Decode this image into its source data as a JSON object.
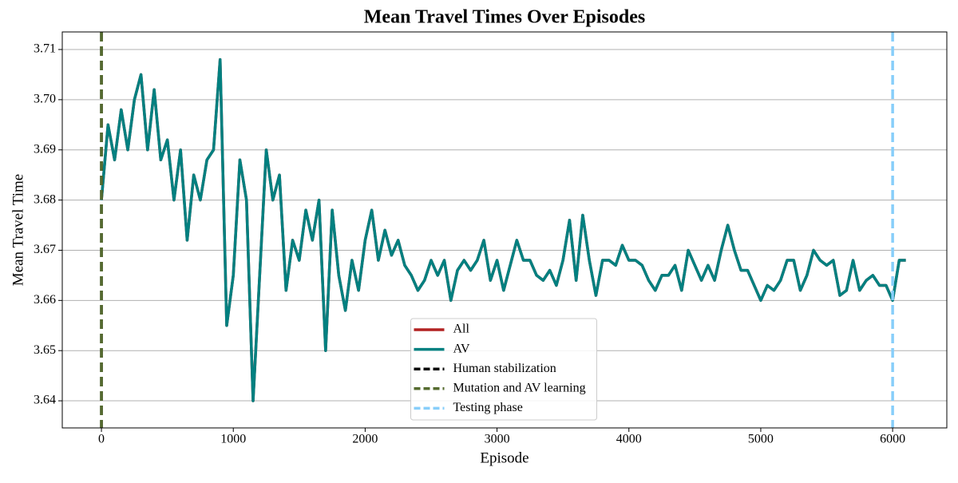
{
  "chart_data": {
    "type": "line",
    "title": "Mean Travel Times Over Episodes",
    "xlabel": "Episode",
    "ylabel": "Mean Travel Time",
    "xlim": [
      -297,
      6411
    ],
    "ylim": [
      3.6346,
      3.7135
    ],
    "xticks": [
      0,
      1000,
      2000,
      3000,
      4000,
      5000,
      6000
    ],
    "yticks": [
      3.64,
      3.65,
      3.66,
      3.67,
      3.68,
      3.69,
      {
        "value": 3.7,
        "label": "3.70"
      },
      3.71
    ],
    "grid": "y",
    "legend": "lower center",
    "x": [
      0,
      50,
      100,
      150,
      200,
      250,
      300,
      350,
      400,
      450,
      500,
      550,
      600,
      650,
      700,
      750,
      800,
      850,
      900,
      950,
      1000,
      1050,
      1100,
      1150,
      1200,
      1250,
      1300,
      1350,
      1400,
      1450,
      1500,
      1550,
      1600,
      1650,
      1700,
      1750,
      1800,
      1850,
      1900,
      1950,
      2000,
      2050,
      2100,
      2150,
      2200,
      2250,
      2300,
      2350,
      2400,
      2450,
      2500,
      2550,
      2600,
      2650,
      2700,
      2750,
      2800,
      2850,
      2900,
      2950,
      3000,
      3050,
      3100,
      3150,
      3200,
      3250,
      3300,
      3350,
      3400,
      3450,
      3500,
      3550,
      3600,
      3650,
      3700,
      3750,
      3800,
      3850,
      3900,
      3950,
      4000,
      4050,
      4100,
      4150,
      4200,
      4250,
      4300,
      4350,
      4400,
      4450,
      4500,
      4550,
      4600,
      4650,
      4700,
      4750,
      4800,
      4850,
      4900,
      4950,
      5000,
      5050,
      5100,
      5150,
      5200,
      5250,
      5300,
      5350,
      5400,
      5450,
      5500,
      5550,
      5600,
      5650,
      5700,
      5750,
      5800,
      5850,
      5900,
      5950,
      6000,
      6050,
      6100
    ],
    "series": [
      {
        "name": "All",
        "color": "#b22222",
        "width": 3.5,
        "values": [
          3.68,
          3.695,
          3.688,
          3.698,
          3.69,
          3.7,
          3.705,
          3.69,
          3.702,
          3.688,
          3.692,
          3.68,
          3.69,
          3.672,
          3.685,
          3.68,
          3.688,
          3.69,
          3.708,
          3.655,
          3.665,
          3.688,
          3.68,
          3.64,
          3.665,
          3.69,
          3.68,
          3.685,
          3.662,
          3.672,
          3.668,
          3.678,
          3.672,
          3.68,
          3.65,
          3.678,
          3.665,
          3.658,
          3.668,
          3.662,
          3.672,
          3.678,
          3.668,
          3.674,
          3.669,
          3.672,
          3.667,
          3.665,
          3.662,
          3.664,
          3.668,
          3.665,
          3.668,
          3.66,
          3.666,
          3.668,
          3.666,
          3.668,
          3.672,
          3.664,
          3.668,
          3.662,
          3.667,
          3.672,
          3.668,
          3.668,
          3.665,
          3.664,
          3.666,
          3.663,
          3.668,
          3.676,
          3.664,
          3.677,
          3.668,
          3.661,
          3.668,
          3.668,
          3.667,
          3.671,
          3.668,
          3.668,
          3.667,
          3.664,
          3.662,
          3.665,
          3.665,
          3.667,
          3.662,
          3.67,
          3.667,
          3.664,
          3.667,
          3.664,
          3.67,
          3.675,
          3.67,
          3.666,
          3.666,
          3.663,
          3.66,
          3.663,
          3.662,
          3.664,
          3.668,
          3.668,
          3.662,
          3.665,
          3.67,
          3.668,
          3.667,
          3.668,
          3.661,
          3.662,
          3.668,
          3.662,
          3.664,
          3.665,
          3.663,
          3.663,
          3.66,
          3.668,
          3.668
        ]
      },
      {
        "name": "AV",
        "color": "#008080",
        "width": 3.5,
        "values": [
          3.68,
          3.695,
          3.688,
          3.698,
          3.69,
          3.7,
          3.705,
          3.69,
          3.702,
          3.688,
          3.692,
          3.68,
          3.69,
          3.672,
          3.685,
          3.68,
          3.688,
          3.69,
          3.708,
          3.655,
          3.665,
          3.688,
          3.68,
          3.64,
          3.665,
          3.69,
          3.68,
          3.685,
          3.662,
          3.672,
          3.668,
          3.678,
          3.672,
          3.68,
          3.65,
          3.678,
          3.665,
          3.658,
          3.668,
          3.662,
          3.672,
          3.678,
          3.668,
          3.674,
          3.669,
          3.672,
          3.667,
          3.665,
          3.662,
          3.664,
          3.668,
          3.665,
          3.668,
          3.66,
          3.666,
          3.668,
          3.666,
          3.668,
          3.672,
          3.664,
          3.668,
          3.662,
          3.667,
          3.672,
          3.668,
          3.668,
          3.665,
          3.664,
          3.666,
          3.663,
          3.668,
          3.676,
          3.664,
          3.677,
          3.668,
          3.661,
          3.668,
          3.668,
          3.667,
          3.671,
          3.668,
          3.668,
          3.667,
          3.664,
          3.662,
          3.665,
          3.665,
          3.667,
          3.662,
          3.67,
          3.667,
          3.664,
          3.667,
          3.664,
          3.67,
          3.675,
          3.67,
          3.666,
          3.666,
          3.663,
          3.66,
          3.663,
          3.662,
          3.664,
          3.668,
          3.668,
          3.662,
          3.665,
          3.67,
          3.668,
          3.667,
          3.668,
          3.661,
          3.662,
          3.668,
          3.662,
          3.664,
          3.665,
          3.663,
          3.663,
          3.66,
          3.668,
          3.668
        ]
      }
    ],
    "vlines": [
      {
        "name": "Human stabilization",
        "color": "#000000",
        "x": 0
      },
      {
        "name": "Mutation and AV learning",
        "color": "#556b2f",
        "x": 0
      },
      {
        "name": "Testing phase",
        "color": "#87cefa",
        "x": 6000
      }
    ]
  }
}
